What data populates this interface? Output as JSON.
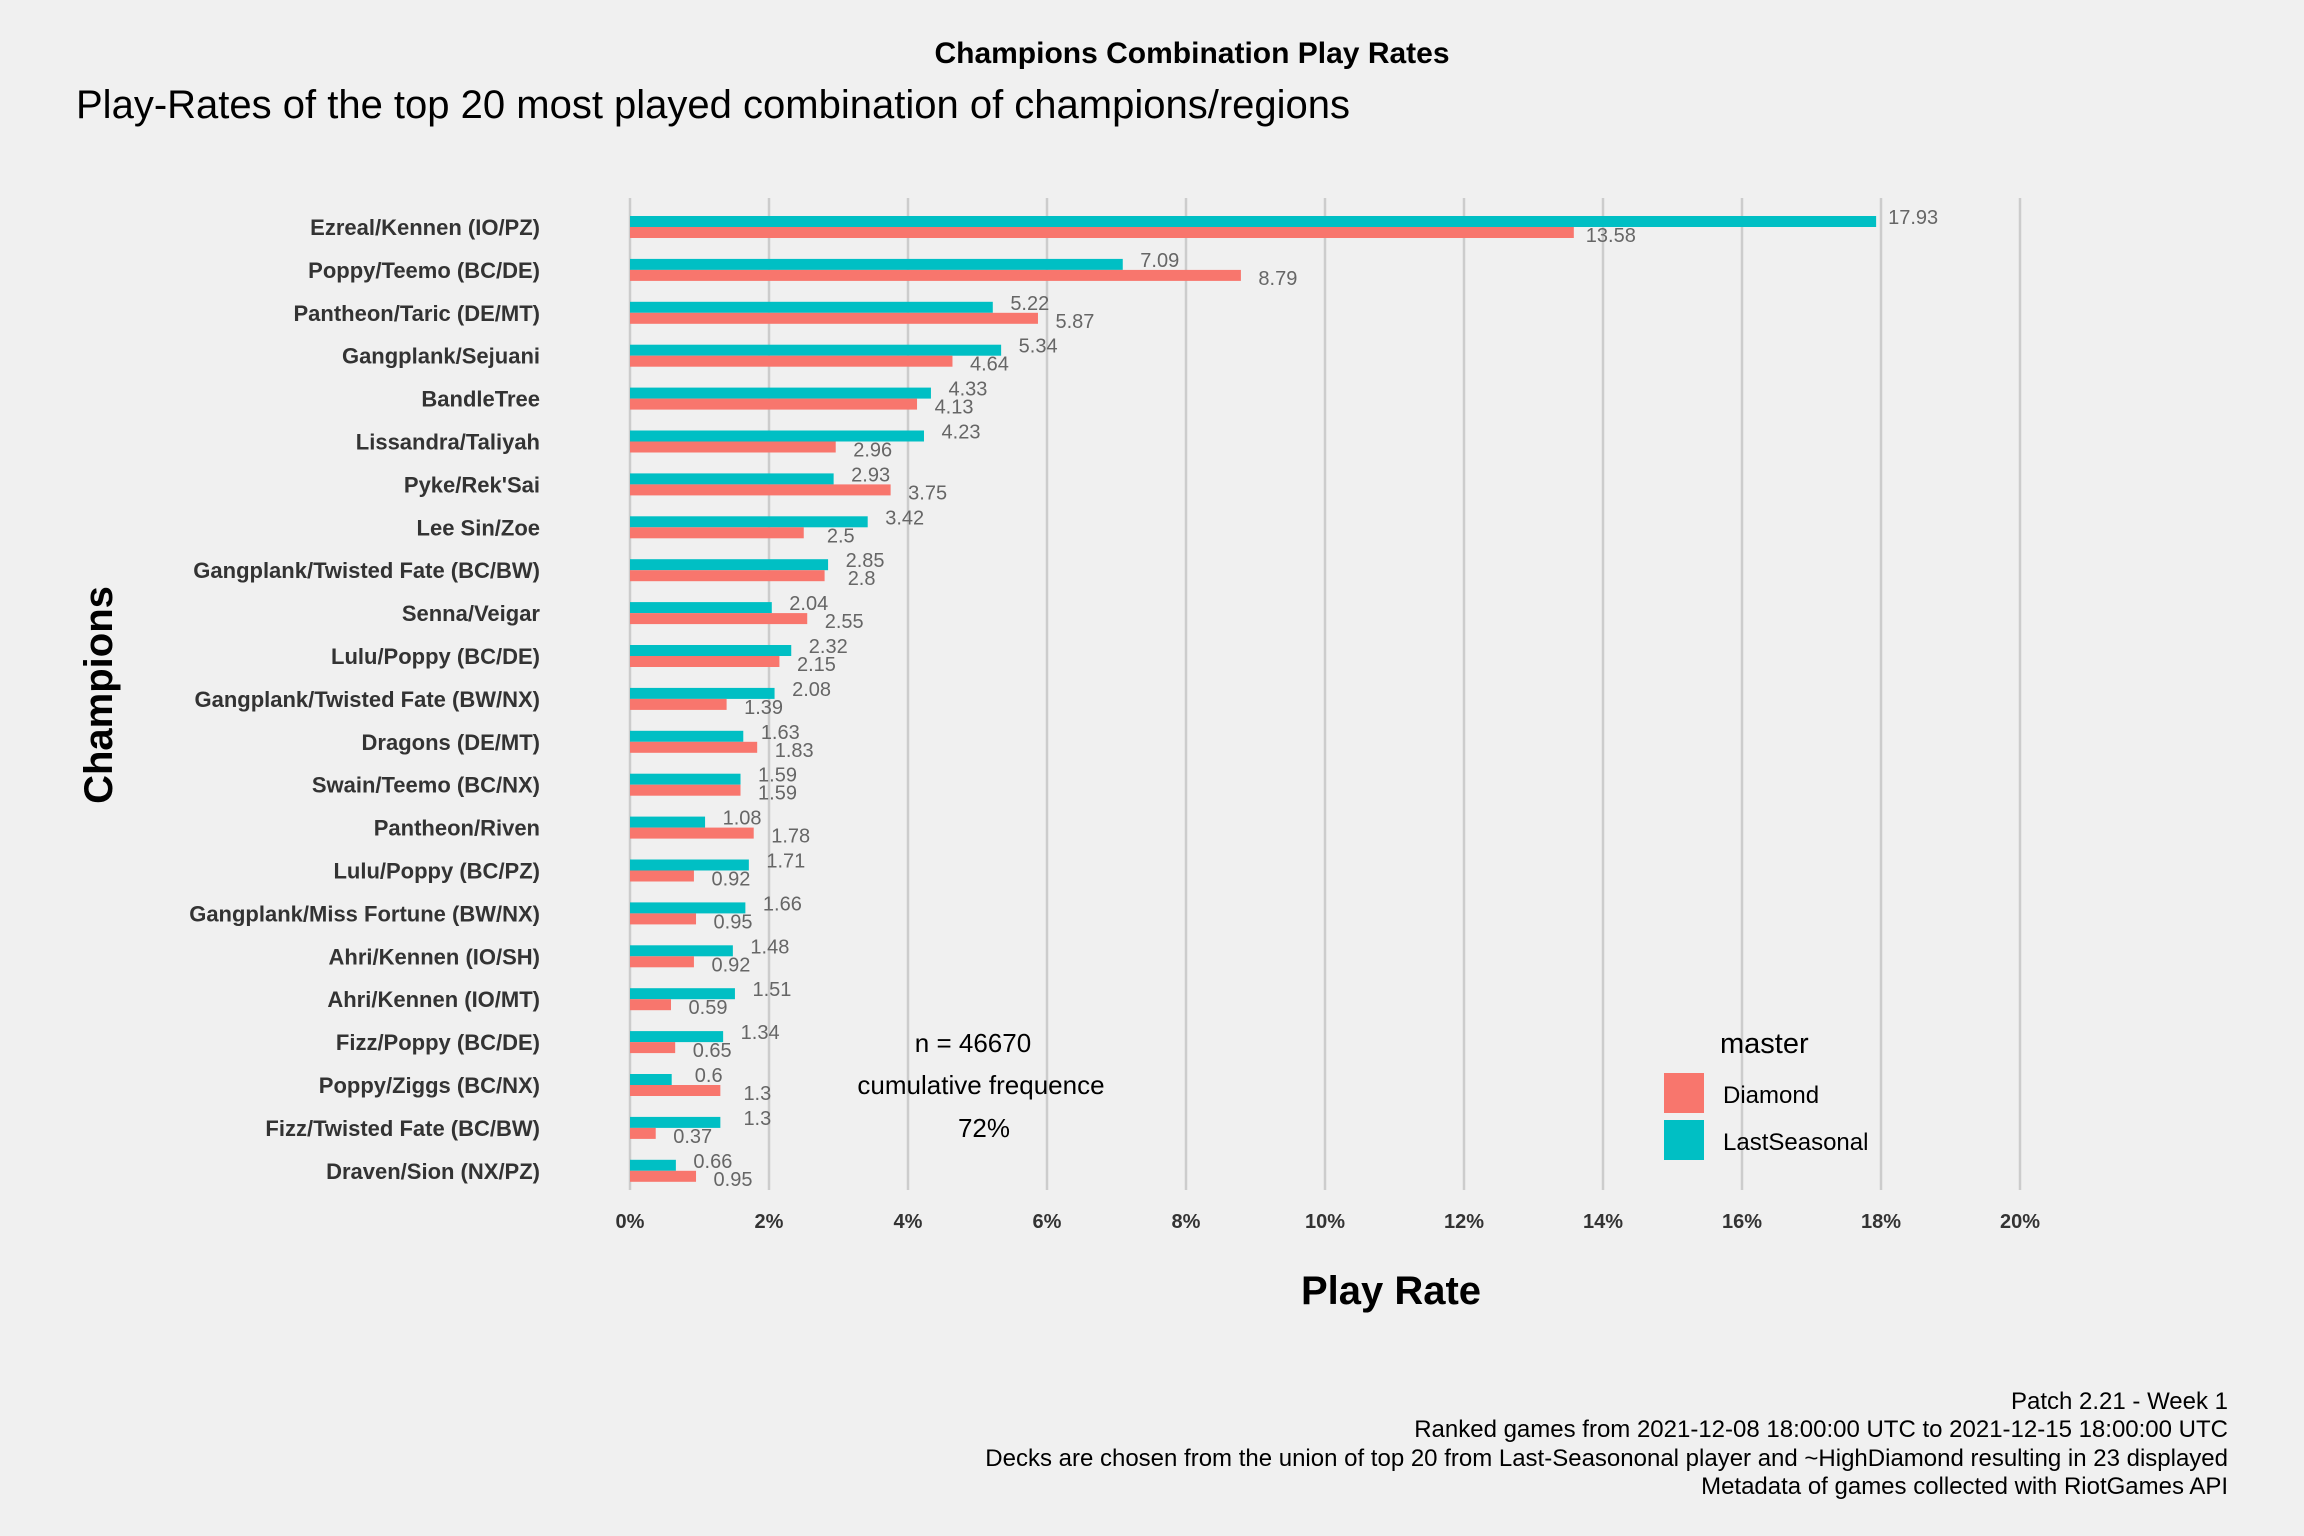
{
  "chart_data": {
    "type": "bar",
    "orientation": "horizontal",
    "title": "Champions Combination Play Rates",
    "subtitle": "Play-Rates of the top 20 most played combination of champions/regions",
    "xlabel": "Play Rate",
    "ylabel": "Champions",
    "xlim": [
      0,
      20
    ],
    "x_ticks": [
      "0%",
      "2%",
      "4%",
      "6%",
      "8%",
      "10%",
      "12%",
      "14%",
      "16%",
      "18%",
      "20%"
    ],
    "x_tick_values": [
      0,
      2,
      4,
      6,
      8,
      10,
      12,
      14,
      16,
      18,
      20
    ],
    "grid": true,
    "legend": {
      "title": "master",
      "position": "bottom-right"
    },
    "categories": [
      "Ezreal/Kennen (IO/PZ)",
      "Poppy/Teemo (BC/DE)",
      "Pantheon/Taric (DE/MT)",
      "Gangplank/Sejuani",
      "BandleTree",
      "Lissandra/Taliyah",
      "Pyke/Rek'Sai",
      "Lee Sin/Zoe",
      "Gangplank/Twisted Fate (BC/BW)",
      "Senna/Veigar",
      "Lulu/Poppy (BC/DE)",
      "Gangplank/Twisted Fate (BW/NX)",
      "Dragons (DE/MT)",
      "Swain/Teemo (BC/NX)",
      "Pantheon/Riven",
      "Lulu/Poppy (BC/PZ)",
      "Gangplank/Miss Fortune (BW/NX)",
      "Ahri/Kennen (IO/SH)",
      "Ahri/Kennen (IO/MT)",
      "Fizz/Poppy (BC/DE)",
      "Poppy/Ziggs (BC/NX)",
      "Fizz/Twisted Fate (BC/BW)",
      "Draven/Sion (NX/PZ)"
    ],
    "series": [
      {
        "name": "Diamond",
        "color": "#f8766d",
        "values": [
          13.58,
          8.79,
          5.87,
          4.64,
          4.13,
          2.96,
          3.75,
          2.5,
          2.8,
          2.55,
          2.15,
          1.39,
          1.83,
          1.59,
          1.78,
          0.92,
          0.95,
          0.92,
          0.59,
          0.65,
          1.3,
          0.37,
          0.95
        ],
        "labels": [
          "13.58",
          "8.79",
          "5.87",
          "4.64",
          "4.13",
          "2.96",
          "3.75",
          "2.5",
          "2.8",
          "2.55",
          "2.15",
          "1.39",
          "1.83",
          "1.59",
          "1.78",
          "0.92",
          "0.95",
          "0.92",
          "0.59",
          "0.65",
          "1.3",
          "0.37",
          "0.95"
        ]
      },
      {
        "name": "LastSeasonal",
        "color": "#00bfc4",
        "values": [
          17.93,
          7.09,
          5.22,
          5.34,
          4.33,
          4.23,
          2.93,
          3.42,
          2.85,
          2.04,
          2.32,
          2.08,
          1.63,
          1.59,
          1.08,
          1.71,
          1.66,
          1.48,
          1.51,
          1.34,
          0.6,
          1.3,
          0.66
        ],
        "labels": [
          "17.93",
          "7.09",
          "5.22",
          "5.34",
          "4.33",
          "4.23",
          "2.93",
          "3.42",
          "2.85",
          "2.04",
          "2.32",
          "2.08",
          "1.63",
          "1.59",
          "1.08",
          "1.71",
          "1.66",
          "1.48",
          "1.51",
          "1.34",
          "0.6",
          "1.3",
          "0.66"
        ]
      }
    ],
    "annotation": {
      "n": "n = 46670",
      "cumulative_label": "cumulative frequence",
      "cumulative_value": "72%"
    }
  },
  "caption": [
    "Patch 2.21 - Week 1",
    "Ranked games from 2021-12-08 18:00:00 UTC to 2021-12-15 18:00:00 UTC",
    "Decks are chosen from the union of top 20 from Last-Seasononal player and ~HighDiamond resulting in 23 displayed",
    "Metadata of games collected with RiotGames API"
  ]
}
